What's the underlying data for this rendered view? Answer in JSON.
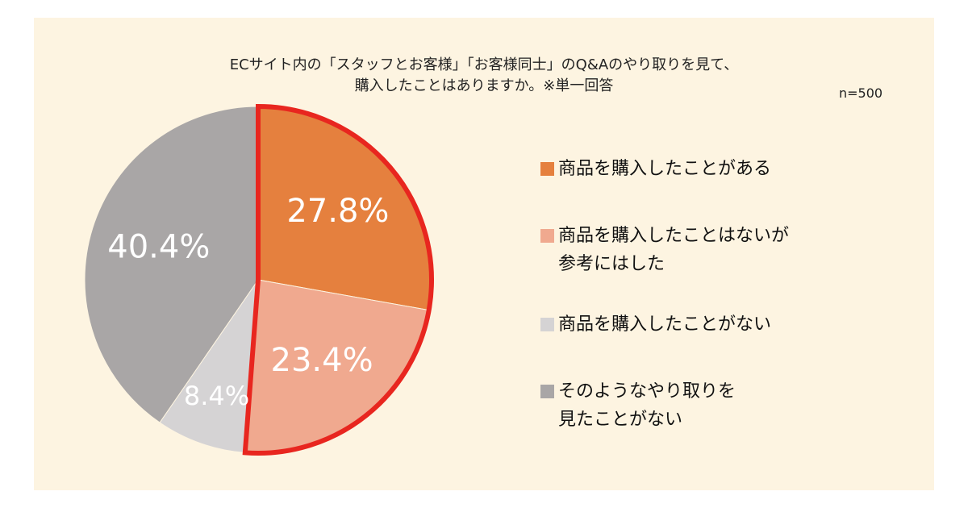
{
  "chart_data": {
    "type": "pie",
    "title": "ECサイト内の「スタッフとお客様」「お客様同士」のQ&Aのやり取りを見て、\n購入したことはありますか。※単一回答",
    "note": "n=500",
    "categories": [
      "商品を購入したことがある",
      "商品を購入したことはないが\n参考にはした",
      "商品を購入したことがない",
      "そのようなやり取りを\n見たことがない"
    ],
    "values": [
      27.8,
      23.4,
      8.4,
      40.4
    ],
    "value_labels": [
      "27.8%",
      "23.4%",
      "8.4%",
      "40.4%"
    ],
    "colors": [
      "#e5803e",
      "#f0a98f",
      "#d5d3d4",
      "#a9a6a6"
    ],
    "highlight": [
      0,
      1
    ],
    "highlight_color": "#e8261f"
  }
}
